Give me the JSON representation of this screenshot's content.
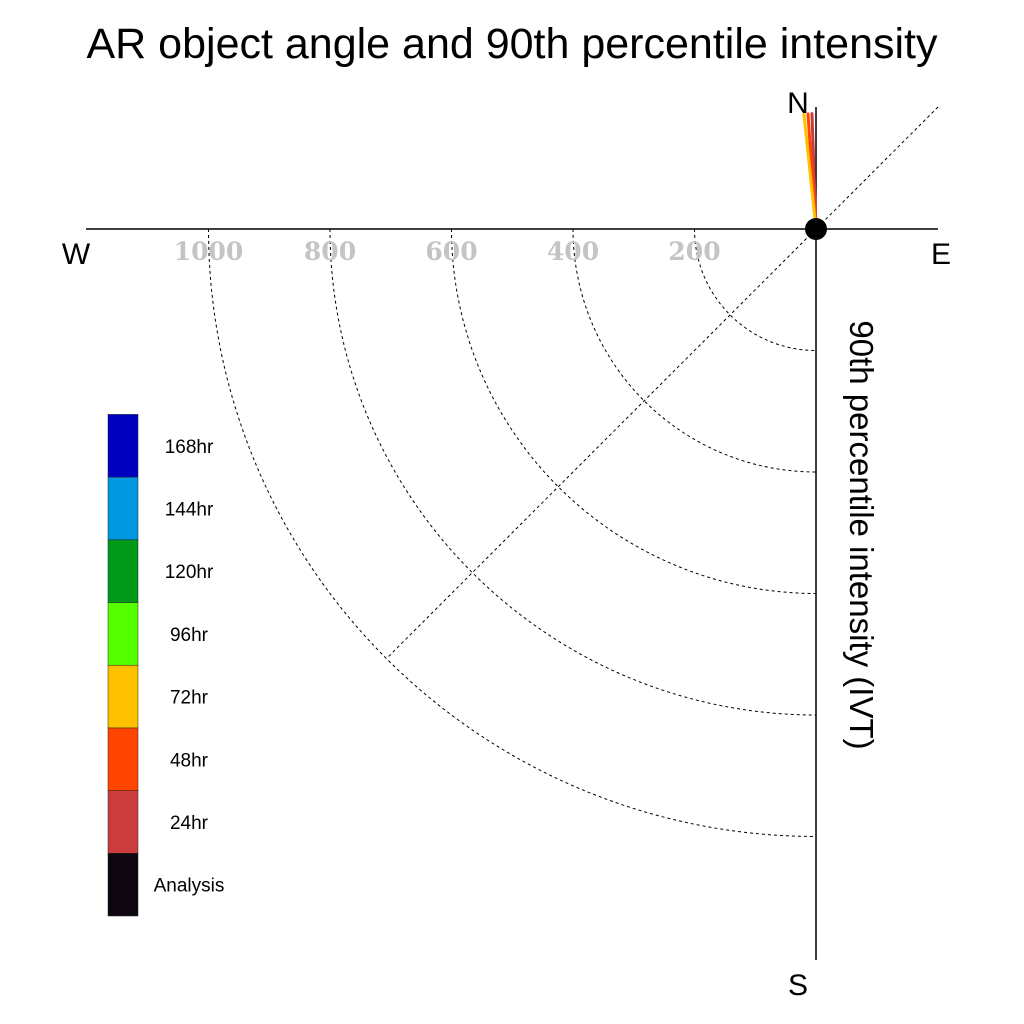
{
  "chart_data": {
    "type": "polar-vector",
    "title": "AR object angle and 90th percentile intensity",
    "ylabel": "90th percentile intensity (IVT)",
    "compass": {
      "north": "N",
      "east": "E",
      "south": "S",
      "west": "W"
    },
    "radial_ticks": [
      200,
      400,
      600,
      800,
      1000
    ],
    "radial_tick_labels": [
      "200",
      "400",
      "600",
      "800",
      "1000"
    ],
    "radial_range": [
      0,
      1150
    ],
    "grid": true,
    "legend_position": "left",
    "series": [
      {
        "name": "Analysis",
        "color": "#0d0610",
        "angle_deg": 0,
        "intensity": 0
      },
      {
        "name": "24hr",
        "color": "#cc3c3c",
        "angle_deg": -2,
        "intensity": 190
      },
      {
        "name": "48hr",
        "color": "#ff4500",
        "angle_deg": -4,
        "intensity": 190
      },
      {
        "name": "72hr",
        "color": "#ffc000",
        "angle_deg": -6,
        "intensity": 190
      },
      {
        "name": "96hr",
        "color": "#55ff00",
        "angle_deg": null,
        "intensity": null
      },
      {
        "name": "120hr",
        "color": "#009a1a",
        "angle_deg": null,
        "intensity": null
      },
      {
        "name": "144hr",
        "color": "#0099e0",
        "angle_deg": null,
        "intensity": null
      },
      {
        "name": "168hr",
        "color": "#0000c0",
        "angle_deg": null,
        "intensity": null
      }
    ]
  }
}
